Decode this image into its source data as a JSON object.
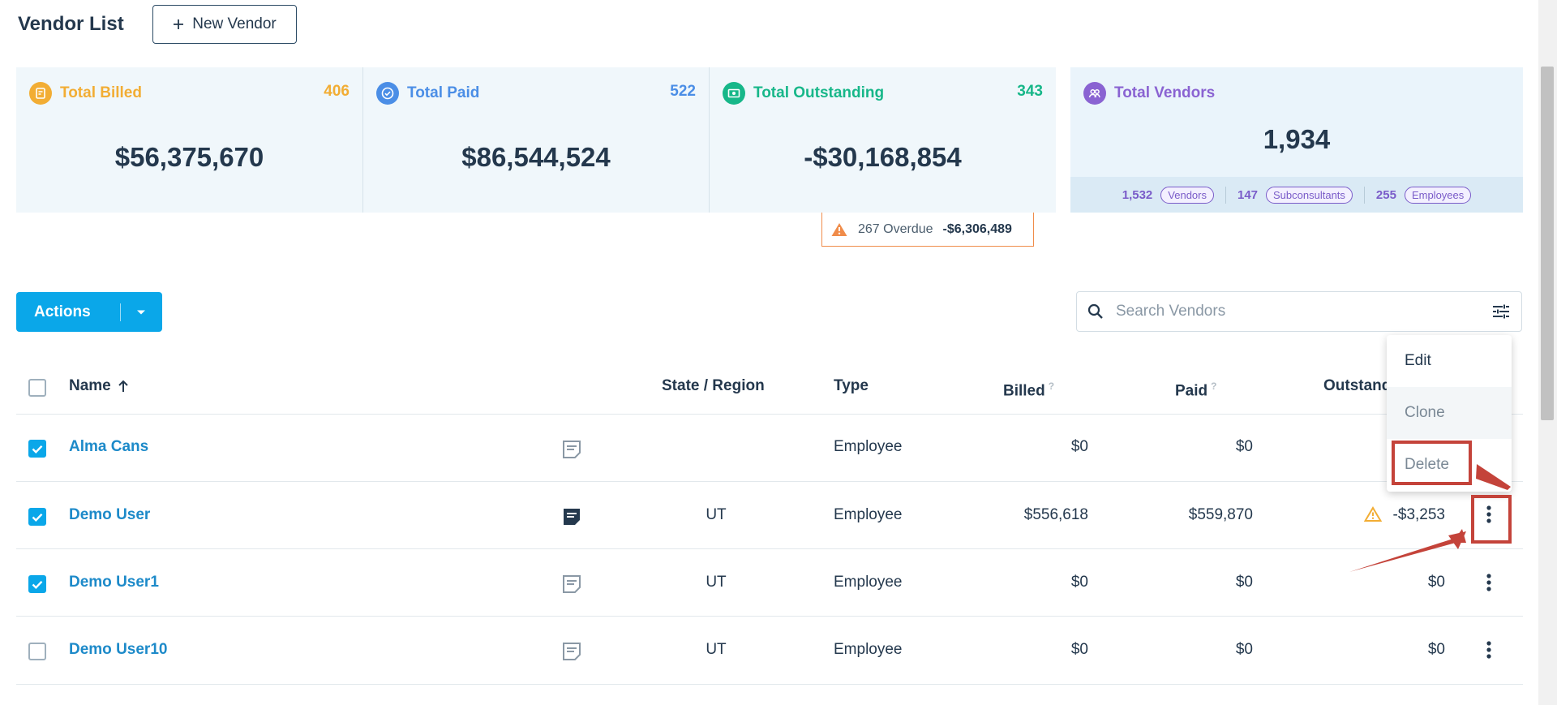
{
  "header": {
    "title": "Vendor List",
    "new_vendor_label": "New Vendor"
  },
  "stats": {
    "billed": {
      "label": "Total Billed",
      "count": "406",
      "amount": "$56,375,670",
      "color": "#f2ad34"
    },
    "paid": {
      "label": "Total Paid",
      "count": "522",
      "amount": "$86,544,524",
      "color": "#4b8ee6"
    },
    "outstanding": {
      "label": "Total Outstanding",
      "count": "343",
      "amount": "-$30,168,854",
      "color": "#17b789"
    },
    "vendors": {
      "label": "Total Vendors",
      "total": "1,934",
      "color": "#8a63d2",
      "breakdown": [
        {
          "count": "1,532",
          "label": "Vendors"
        },
        {
          "count": "147",
          "label": "Subconsultants"
        },
        {
          "count": "255",
          "label": "Employees"
        }
      ]
    }
  },
  "overdue": {
    "label": "267 Overdue",
    "amount": "-$6,306,489"
  },
  "actions": {
    "label": "Actions"
  },
  "search": {
    "placeholder": "Search Vendors",
    "value": ""
  },
  "table": {
    "columns": {
      "name": "Name",
      "state": "State / Region",
      "type": "Type",
      "billed": "Billed",
      "paid": "Paid",
      "outstanding": "Outstanding",
      "help_mark": "?"
    },
    "rows": [
      {
        "name": "Alma Cans",
        "checked": true,
        "state": "",
        "type": "Employee",
        "billed": "$0",
        "paid": "$0",
        "outstanding": "",
        "warning": false
      },
      {
        "name": "Demo User",
        "checked": true,
        "state": "UT",
        "type": "Employee",
        "billed": "$556,618",
        "paid": "$559,870",
        "outstanding": "-$3,253",
        "warning": true
      },
      {
        "name": "Demo User1",
        "checked": true,
        "state": "UT",
        "type": "Employee",
        "billed": "$0",
        "paid": "$0",
        "outstanding": "$0",
        "warning": false
      },
      {
        "name": "Demo User10",
        "checked": false,
        "state": "UT",
        "type": "Employee",
        "billed": "$0",
        "paid": "$0",
        "outstanding": "$0",
        "warning": false
      }
    ]
  },
  "row_menu": {
    "edit": "Edit",
    "clone": "Clone",
    "delete": "Delete"
  },
  "colors": {
    "accent": "#0aa7e9",
    "link": "#1d8ac9",
    "annotation": "#c4433a"
  }
}
